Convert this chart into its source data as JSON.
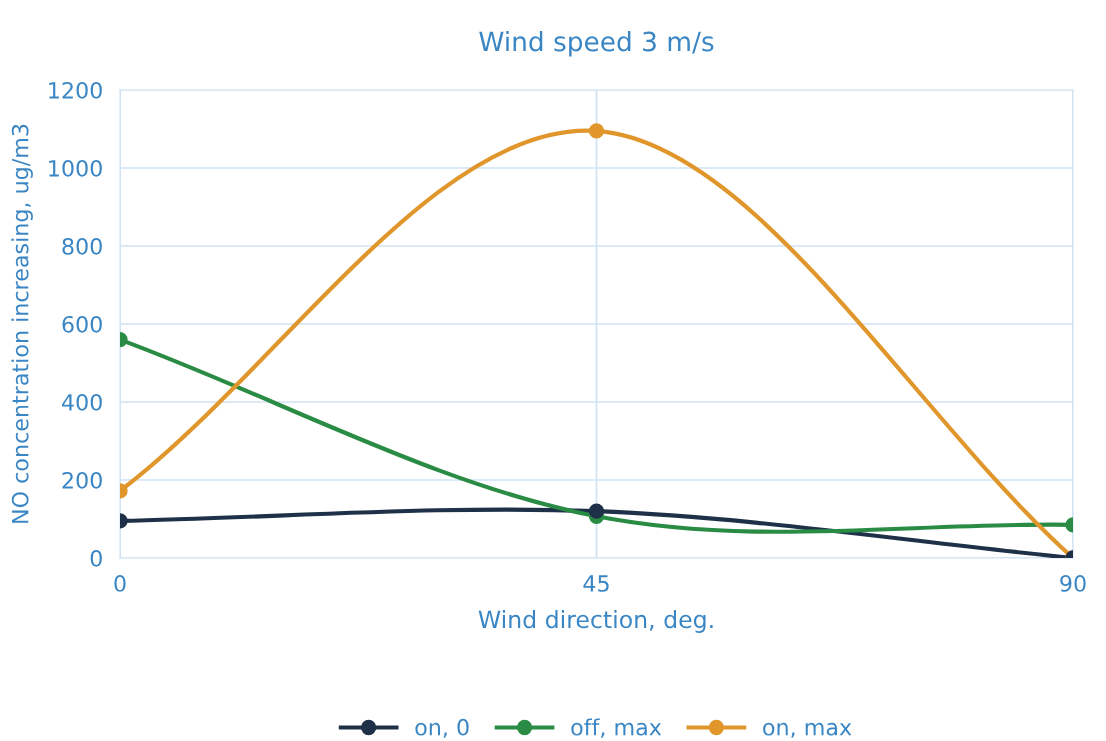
{
  "chart_data": {
    "type": "line",
    "title": "Wind speed 3 m/s",
    "xlabel": "Wind direction, deg.",
    "ylabel": "NO concentration increasing, ug/m3",
    "x": [
      0,
      45,
      90
    ],
    "series": [
      {
        "name": "on, 0",
        "color": "#1f3049",
        "values": [
          95,
          120,
          0
        ]
      },
      {
        "name": "off, max",
        "color": "#2a8c44",
        "values": [
          560,
          107,
          85
        ]
      },
      {
        "name": "on, max",
        "color": "#e0962a",
        "values": [
          172,
          1095,
          0
        ]
      }
    ],
    "xlim": [
      0,
      90
    ],
    "xticks": [
      0,
      45,
      90
    ],
    "ylim": [
      0,
      1200
    ],
    "yticks": [
      0,
      200,
      400,
      600,
      800,
      1000,
      1200
    ],
    "grid": true,
    "legend": "bottom",
    "marker": "circle",
    "line_style": "solid"
  }
}
